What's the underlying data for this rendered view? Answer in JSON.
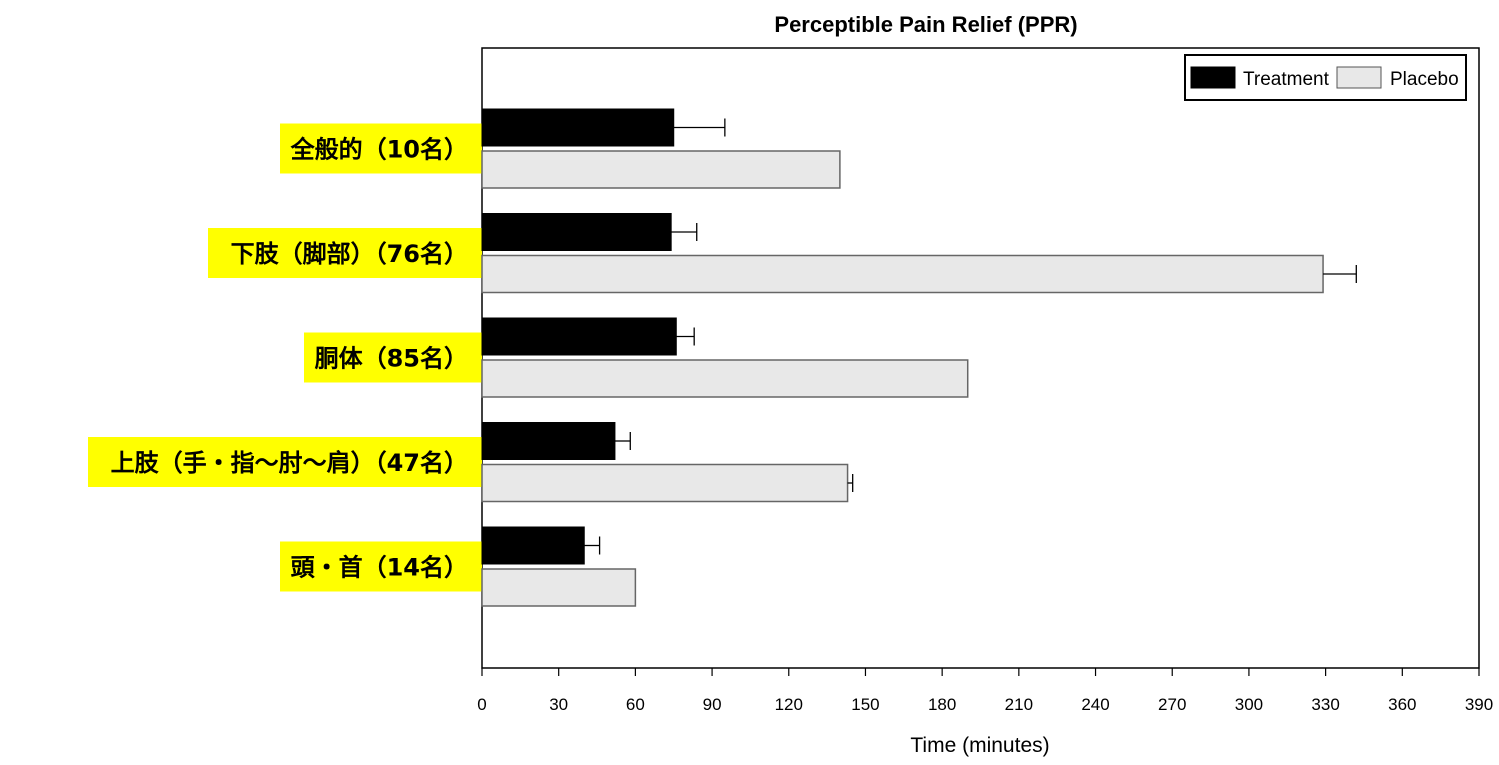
{
  "chart_data": {
    "type": "bar",
    "orientation": "horizontal",
    "title": "Perceptible Pain Relief (PPR)",
    "xlabel": "Time (minutes)",
    "ylabel": "",
    "xlim": [
      0,
      390
    ],
    "xticks": [
      0,
      30,
      60,
      90,
      120,
      150,
      180,
      210,
      240,
      270,
      300,
      330,
      360,
      390
    ],
    "legend_position": "top-right",
    "category_label_background": "#ffff00",
    "categories": [
      "全般的（10名）",
      "下肢（脚部）（76名）",
      "胴体（85名）",
      "上肢（手・指～肘～肩）（47名）",
      "頭・首（14名）"
    ],
    "series": [
      {
        "name": "Treatment",
        "color": "#000000",
        "values": [
          75,
          74,
          76,
          52,
          40
        ],
        "errors": [
          20,
          10,
          7,
          6,
          6
        ]
      },
      {
        "name": "Placebo",
        "color": "#e8e8e8",
        "values": [
          140,
          329,
          190,
          143,
          60
        ],
        "errors": [
          0,
          13,
          0,
          2,
          0
        ]
      }
    ]
  }
}
